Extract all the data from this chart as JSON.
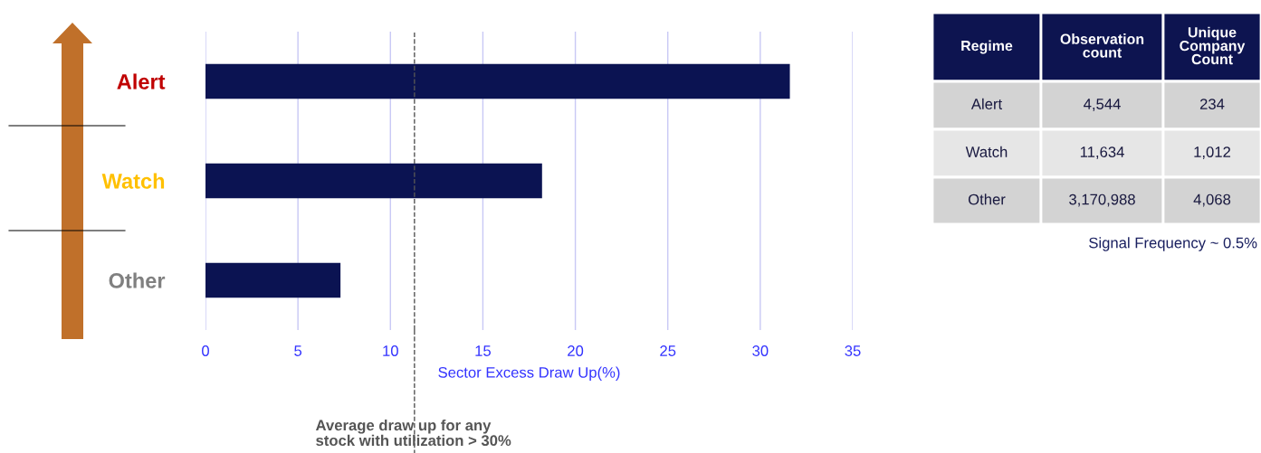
{
  "chart_data": [
    {
      "type": "bar",
      "orientation": "horizontal",
      "categories": [
        "Alert",
        "Watch",
        "Other"
      ],
      "values": [
        31.6,
        18.2,
        7.3
      ],
      "color": "#0b1352",
      "xlim": [
        0,
        35
      ],
      "xticks": [
        0,
        5,
        10,
        15,
        20,
        25,
        30,
        35
      ],
      "xlabel": "Sector Excess Draw Up(%)",
      "grid": "x",
      "legend": false,
      "ref_lines": [
        {
          "axis": "x",
          "value": 11.3,
          "label": "Average draw up for any\nstock with utilization > 30%",
          "color": "#555555",
          "line_style": "dashed"
        }
      ]
    },
    {
      "type": "other",
      "categories": [
        "Regime",
        "Observation\ncount",
        "Unique\nCompany\nCount"
      ],
      "cell_labels": [
        [
          "Alert",
          "4,544",
          "234"
        ],
        [
          "Watch",
          "11,634",
          "1,012"
        ],
        [
          "Other",
          "3,170,988",
          "4,068"
        ]
      ],
      "annotations": [
        "Signal Frequency ~ 0.5%"
      ]
    }
  ]
}
